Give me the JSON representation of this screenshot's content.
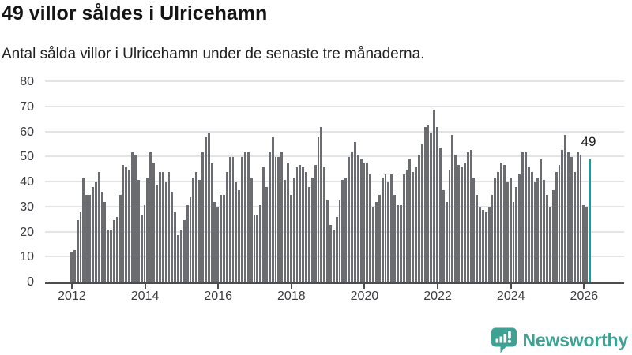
{
  "header": {
    "title": "49 villor såldes i Ulricehamn",
    "subtitle": "Antal sålda villor i Ulricehamn under de senaste tre månaderna."
  },
  "chart_data": {
    "type": "bar",
    "title": "49 villor såldes i Ulricehamn",
    "subtitle": "Antal sålda villor i Ulricehamn under de senaste tre månaderna.",
    "ylim": [
      0,
      80
    ],
    "y_ticks": [
      0,
      10,
      20,
      30,
      40,
      50,
      60,
      70,
      80
    ],
    "x_start_year": 2012,
    "x_tick_years": [
      2012,
      2014,
      2016,
      2018,
      2020,
      2022,
      2024,
      2026
    ],
    "months_per_year": 12,
    "grid": "horizontal",
    "legend": "none",
    "values": [
      12,
      13,
      25,
      28,
      42,
      35,
      35,
      38,
      40,
      44,
      36,
      32,
      21,
      21,
      25,
      26,
      35,
      47,
      46,
      45,
      52,
      51,
      41,
      27,
      31,
      42,
      52,
      48,
      39,
      44,
      44,
      40,
      44,
      36,
      28,
      19,
      21,
      25,
      31,
      34,
      42,
      44,
      41,
      52,
      58,
      60,
      48,
      32,
      30,
      35,
      35,
      44,
      50,
      50,
      40,
      37,
      50,
      52,
      52,
      42,
      27,
      27,
      31,
      46,
      38,
      52,
      58,
      50,
      50,
      52,
      41,
      48,
      35,
      42,
      46,
      47,
      46,
      44,
      38,
      42,
      47,
      58,
      62,
      46,
      33,
      23,
      21,
      26,
      33,
      41,
      42,
      50,
      52,
      56,
      51,
      49,
      48,
      48,
      43,
      30,
      32,
      35,
      42,
      43,
      40,
      43,
      35,
      31,
      31,
      43,
      45,
      49,
      44,
      46,
      51,
      55,
      62,
      63,
      60,
      69,
      62,
      54,
      37,
      32,
      45,
      59,
      51,
      47,
      46,
      48,
      52,
      53,
      42,
      35,
      30,
      29,
      28,
      30,
      35,
      42,
      44,
      48,
      47,
      40,
      42,
      32,
      38,
      43,
      52,
      52,
      46,
      44,
      40,
      42,
      49,
      41,
      35,
      30,
      37,
      44,
      47,
      53,
      59,
      52,
      50,
      44,
      52,
      51,
      31,
      30,
      49
    ],
    "highlight_index": 170,
    "highlight_value": 49,
    "highlight_value_label": "49",
    "bar_color": "#6b6b72",
    "highlight_color": "#0aa3a1",
    "gridline_color": "#e4e4e7",
    "axis_color": "#4c4c51",
    "label_color": "#3b3b40"
  },
  "branding": {
    "logo_text": "Newsworthy",
    "logo_color": "#3da294",
    "logo_icon": "speech-bubble-bar-chart-exclamation"
  }
}
